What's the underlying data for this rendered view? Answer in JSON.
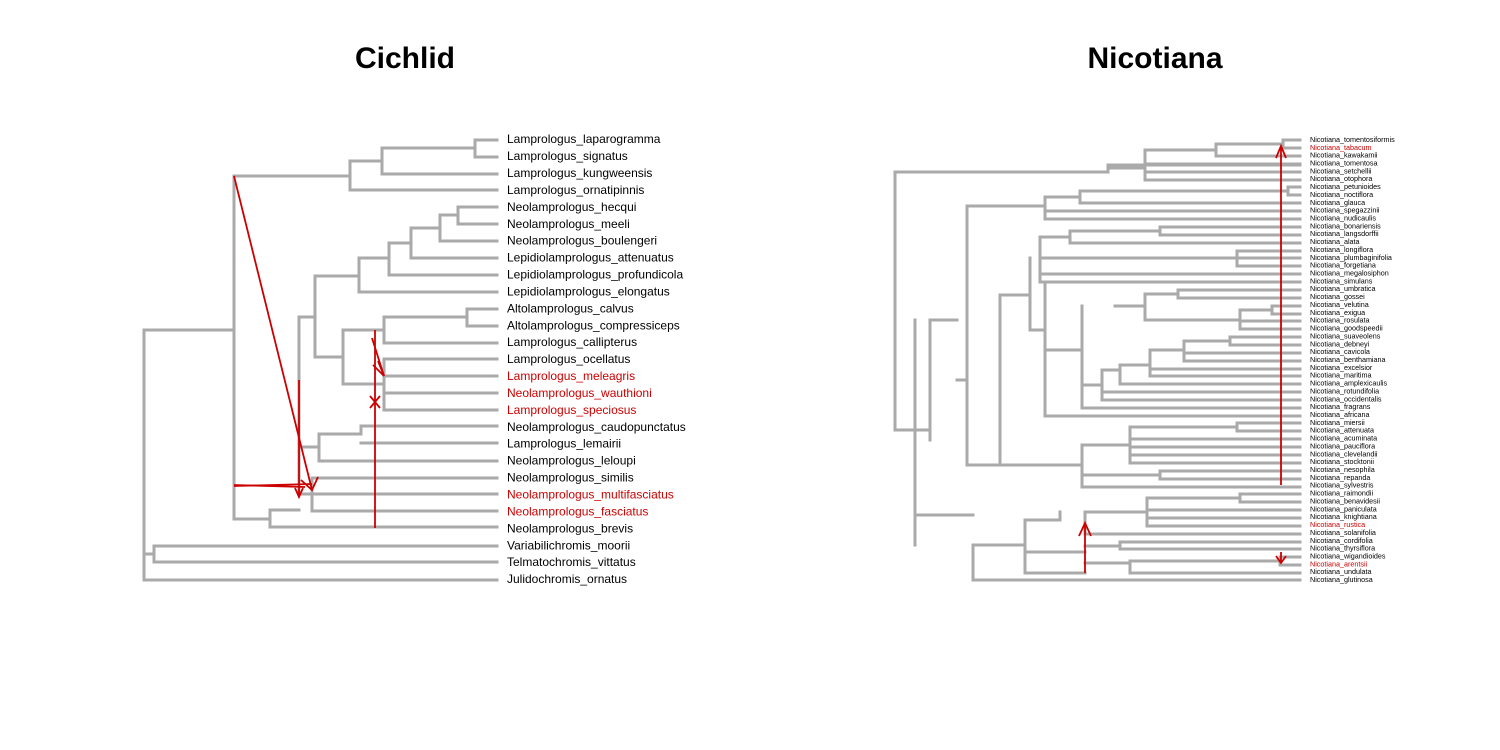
{
  "colors": {
    "branch": "#aaaaaa",
    "highlight": "#cc0000",
    "text": "#000000"
  },
  "panels": [
    {
      "id": "cichlid",
      "title": "Cichlid",
      "tips": [
        {
          "name": "Lamprologus_laparogramma",
          "hl": false
        },
        {
          "name": "Lamprologus_signatus",
          "hl": false
        },
        {
          "name": "Lamprologus_kungweensis",
          "hl": false
        },
        {
          "name": "Lamprologus_ornatipinnis",
          "hl": false
        },
        {
          "name": "Neolamprologus_hecqui",
          "hl": false
        },
        {
          "name": "Neolamprologus_meeli",
          "hl": false
        },
        {
          "name": "Neolamprologus_boulengeri",
          "hl": false
        },
        {
          "name": "Lepidiolamprologus_attenuatus",
          "hl": false
        },
        {
          "name": "Lepidiolamprologus_profundicola",
          "hl": false
        },
        {
          "name": "Lepidiolamprologus_elongatus",
          "hl": false
        },
        {
          "name": "Altolamprologus_calvus",
          "hl": false
        },
        {
          "name": "Altolamprologus_compressiceps",
          "hl": false
        },
        {
          "name": "Lamprologus_callipterus",
          "hl": false
        },
        {
          "name": "Lamprologus_ocellatus",
          "hl": false
        },
        {
          "name": "Lamprologus_meleagris",
          "hl": true
        },
        {
          "name": "Neolamprologus_wauthioni",
          "hl": true
        },
        {
          "name": "Lamprologus_speciosus",
          "hl": true
        },
        {
          "name": "Neolamprologus_caudopunctatus",
          "hl": false
        },
        {
          "name": "Lamprologus_lemairii",
          "hl": false
        },
        {
          "name": "Neolamprologus_leloupi",
          "hl": false
        },
        {
          "name": "Neolamprologus_similis",
          "hl": false
        },
        {
          "name": "Neolamprologus_multifasciatus",
          "hl": true
        },
        {
          "name": "Neolamprologus_fasciatus",
          "hl": true
        },
        {
          "name": "Neolamprologus_brevis",
          "hl": false
        },
        {
          "name": "Variabilichromis_moorii",
          "hl": false
        },
        {
          "name": "Telmatochromis_vittatus",
          "hl": false
        },
        {
          "name": "Julidochromis_ornatus",
          "hl": false
        }
      ]
    },
    {
      "id": "nicotiana",
      "title": "Nicotiana",
      "tips": [
        {
          "name": "Nicotiana_tomentosiformis",
          "hl": false
        },
        {
          "name": "Nicotiana_tabacum",
          "hl": true
        },
        {
          "name": "Nicotiana_kawakamii",
          "hl": false
        },
        {
          "name": "Nicotiana_tomentosa",
          "hl": false
        },
        {
          "name": "Nicotiana_setchellii",
          "hl": false
        },
        {
          "name": "Nicotiana_otophora",
          "hl": false
        },
        {
          "name": "Nicotiana_petunioides",
          "hl": false
        },
        {
          "name": "Nicotiana_noctiflora",
          "hl": false
        },
        {
          "name": "Nicotiana_glauca",
          "hl": false
        },
        {
          "name": "Nicotiana_spegazzinii",
          "hl": false
        },
        {
          "name": "Nicotiana_nudicaulis",
          "hl": false
        },
        {
          "name": "Nicotiana_bonariensis",
          "hl": false
        },
        {
          "name": "Nicotiana_langsdorffii",
          "hl": false
        },
        {
          "name": "Nicotiana_alata",
          "hl": false
        },
        {
          "name": "Nicotiana_longiflora",
          "hl": false
        },
        {
          "name": "Nicotiana_plumbaginifolia",
          "hl": false
        },
        {
          "name": "Nicotiana_forgetiana",
          "hl": false
        },
        {
          "name": "Nicotiana_megalosiphon",
          "hl": false
        },
        {
          "name": "Nicotiana_simulans",
          "hl": false
        },
        {
          "name": "Nicotiana_umbratica",
          "hl": false
        },
        {
          "name": "Nicotiana_gossei",
          "hl": false
        },
        {
          "name": "Nicotiana_velutina",
          "hl": false
        },
        {
          "name": "Nicotiana_exigua",
          "hl": false
        },
        {
          "name": "Nicotiana_rosulata",
          "hl": false
        },
        {
          "name": "Nicotiana_goodspeedii",
          "hl": false
        },
        {
          "name": "Nicotiana_suaveolens",
          "hl": false
        },
        {
          "name": "Nicotiana_debneyi",
          "hl": false
        },
        {
          "name": "Nicotiana_cavicola",
          "hl": false
        },
        {
          "name": "Nicotiana_benthamiana",
          "hl": false
        },
        {
          "name": "Nicotiana_excelsior",
          "hl": false
        },
        {
          "name": "Nicotiana_maritima",
          "hl": false
        },
        {
          "name": "Nicotiana_amplexicaulis",
          "hl": false
        },
        {
          "name": "Nicotiana_rotundifolia",
          "hl": false
        },
        {
          "name": "Nicotiana_occidentalis",
          "hl": false
        },
        {
          "name": "Nicotiana_fragrans",
          "hl": false
        },
        {
          "name": "Nicotiana_africana",
          "hl": false
        },
        {
          "name": "Nicotiana_miersii",
          "hl": false
        },
        {
          "name": "Nicotiana_attenuata",
          "hl": false
        },
        {
          "name": "Nicotiana_acuminata",
          "hl": false
        },
        {
          "name": "Nicotiana_pauciflora",
          "hl": false
        },
        {
          "name": "Nicotiana_clevelandii",
          "hl": false
        },
        {
          "name": "Nicotiana_stocktonii",
          "hl": false
        },
        {
          "name": "Nicotiana_nesophila",
          "hl": false
        },
        {
          "name": "Nicotiana_repanda",
          "hl": false
        },
        {
          "name": "Nicotiana_sylvestris",
          "hl": false
        },
        {
          "name": "Nicotiana_raimondii",
          "hl": false
        },
        {
          "name": "Nicotiana_benavidesii",
          "hl": false
        },
        {
          "name": "Nicotiana_paniculata",
          "hl": false
        },
        {
          "name": "Nicotiana_knightiana",
          "hl": false
        },
        {
          "name": "Nicotiana_rustica",
          "hl": true
        },
        {
          "name": "Nicotiana_solanifolia",
          "hl": false
        },
        {
          "name": "Nicotiana_cordifolia",
          "hl": false
        },
        {
          "name": "Nicotiana_thyrsiflora",
          "hl": false
        },
        {
          "name": "Nicotiana_wigandioides",
          "hl": false
        },
        {
          "name": "Nicotiana_arentsii",
          "hl": true
        },
        {
          "name": "Nicotiana_undulata",
          "hl": false
        },
        {
          "name": "Nicotiana_glutinosa",
          "hl": false
        }
      ]
    }
  ]
}
